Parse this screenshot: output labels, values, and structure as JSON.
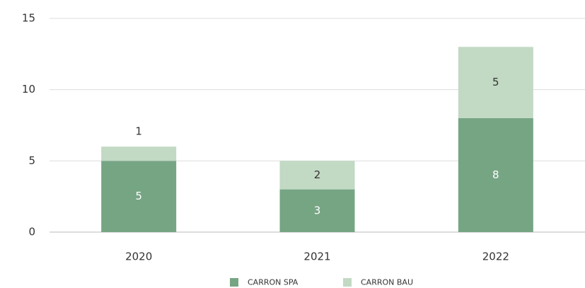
{
  "chart_data": {
    "type": "stacked_bar",
    "categories": [
      "2020",
      "2021",
      "2022"
    ],
    "series": [
      {
        "name": "CARRON SPA",
        "color": "#76a584",
        "label_color": "#ffffff",
        "values": [
          5,
          3,
          8
        ]
      },
      {
        "name": "CARRON BAU",
        "color": "#c2d9c4",
        "label_color": "#333333",
        "values": [
          1,
          2,
          5
        ]
      }
    ],
    "ylim": [
      0,
      15
    ],
    "yticks": [
      0,
      5,
      10,
      15
    ],
    "grid": true,
    "legend": "bottom"
  }
}
